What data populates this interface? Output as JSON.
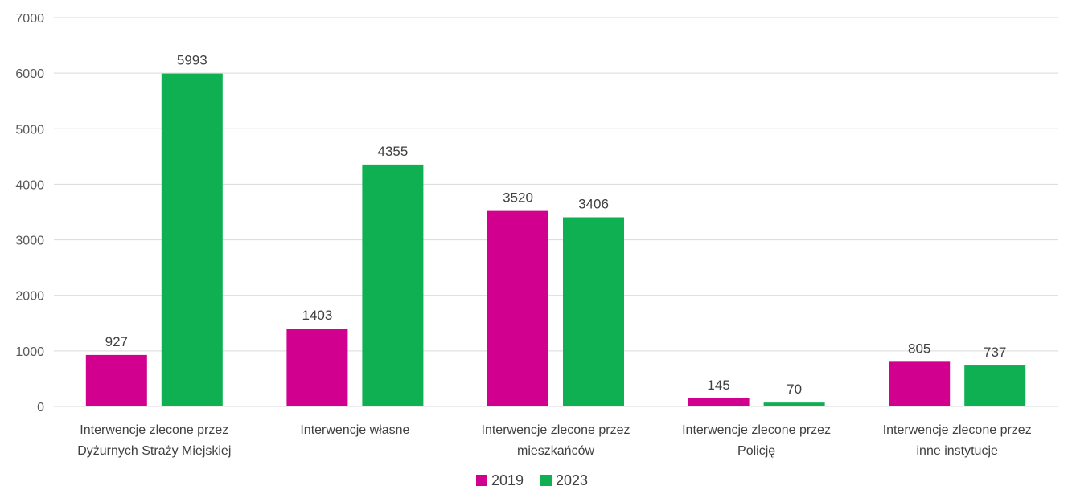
{
  "chart_data": {
    "type": "bar",
    "categories": [
      [
        "Interwencje zlecone przez",
        "Dyżurnych Straży Miejskiej"
      ],
      [
        "Interwencje własne"
      ],
      [
        "Interwencje zlecone przez",
        "mieszkańców"
      ],
      [
        "Interwencje zlecone przez",
        "Policję"
      ],
      [
        "Interwencje zlecone przez",
        "inne instytucje"
      ]
    ],
    "series": [
      {
        "name": "2019",
        "color": "#d1008f",
        "values": [
          927,
          1403,
          3520,
          145,
          805
        ]
      },
      {
        "name": "2023",
        "color": "#0fb052",
        "values": [
          5993,
          4355,
          3406,
          70,
          737
        ]
      }
    ],
    "ylim": [
      0,
      7000
    ],
    "yticks": [
      0,
      1000,
      2000,
      3000,
      4000,
      5000,
      6000,
      7000
    ],
    "grid": true,
    "legend_position": "bottom"
  }
}
